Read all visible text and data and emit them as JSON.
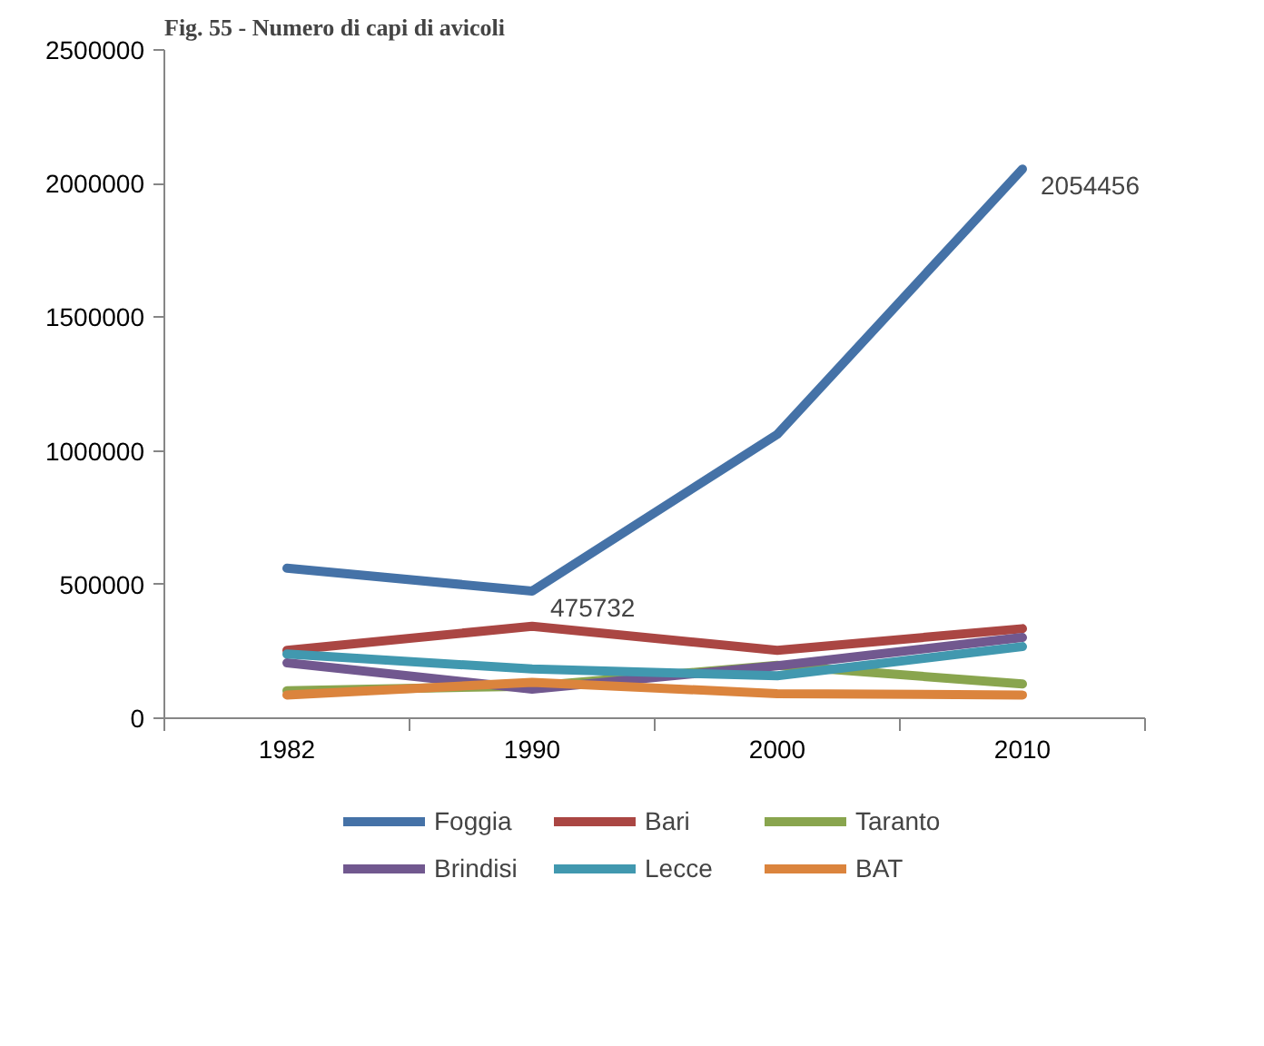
{
  "chart_data": {
    "type": "line",
    "title": "Fig. 55 - Numero di capi di avicoli",
    "categories": [
      "1982",
      "1990",
      "2000",
      "2010"
    ],
    "ylim": [
      0,
      2500000
    ],
    "yticks": [
      0,
      500000,
      1000000,
      1500000,
      2000000,
      2500000
    ],
    "grid": false,
    "legend": "bottom",
    "marker": "none",
    "line_style": "solid",
    "series": [
      {
        "name": "Foggia",
        "color": "#4572a7",
        "values": [
          561000,
          475732,
          1062000,
          2054456
        ],
        "value_labels": [
          null,
          "475732",
          null,
          "2054456"
        ]
      },
      {
        "name": "Bari",
        "color": "#aa4643",
        "values": [
          254000,
          344000,
          254000,
          335000
        ]
      },
      {
        "name": "Taranto",
        "color": "#89a54e",
        "values": [
          103000,
          120000,
          198000,
          128000
        ]
      },
      {
        "name": "Brindisi",
        "color": "#71588f",
        "values": [
          207000,
          109000,
          196000,
          302000
        ]
      },
      {
        "name": "Lecce",
        "color": "#4198af",
        "values": [
          240000,
          184000,
          159000,
          268000
        ]
      },
      {
        "name": "BAT",
        "color": "#db843d",
        "values": [
          87000,
          134000,
          92000,
          87000
        ]
      }
    ]
  }
}
